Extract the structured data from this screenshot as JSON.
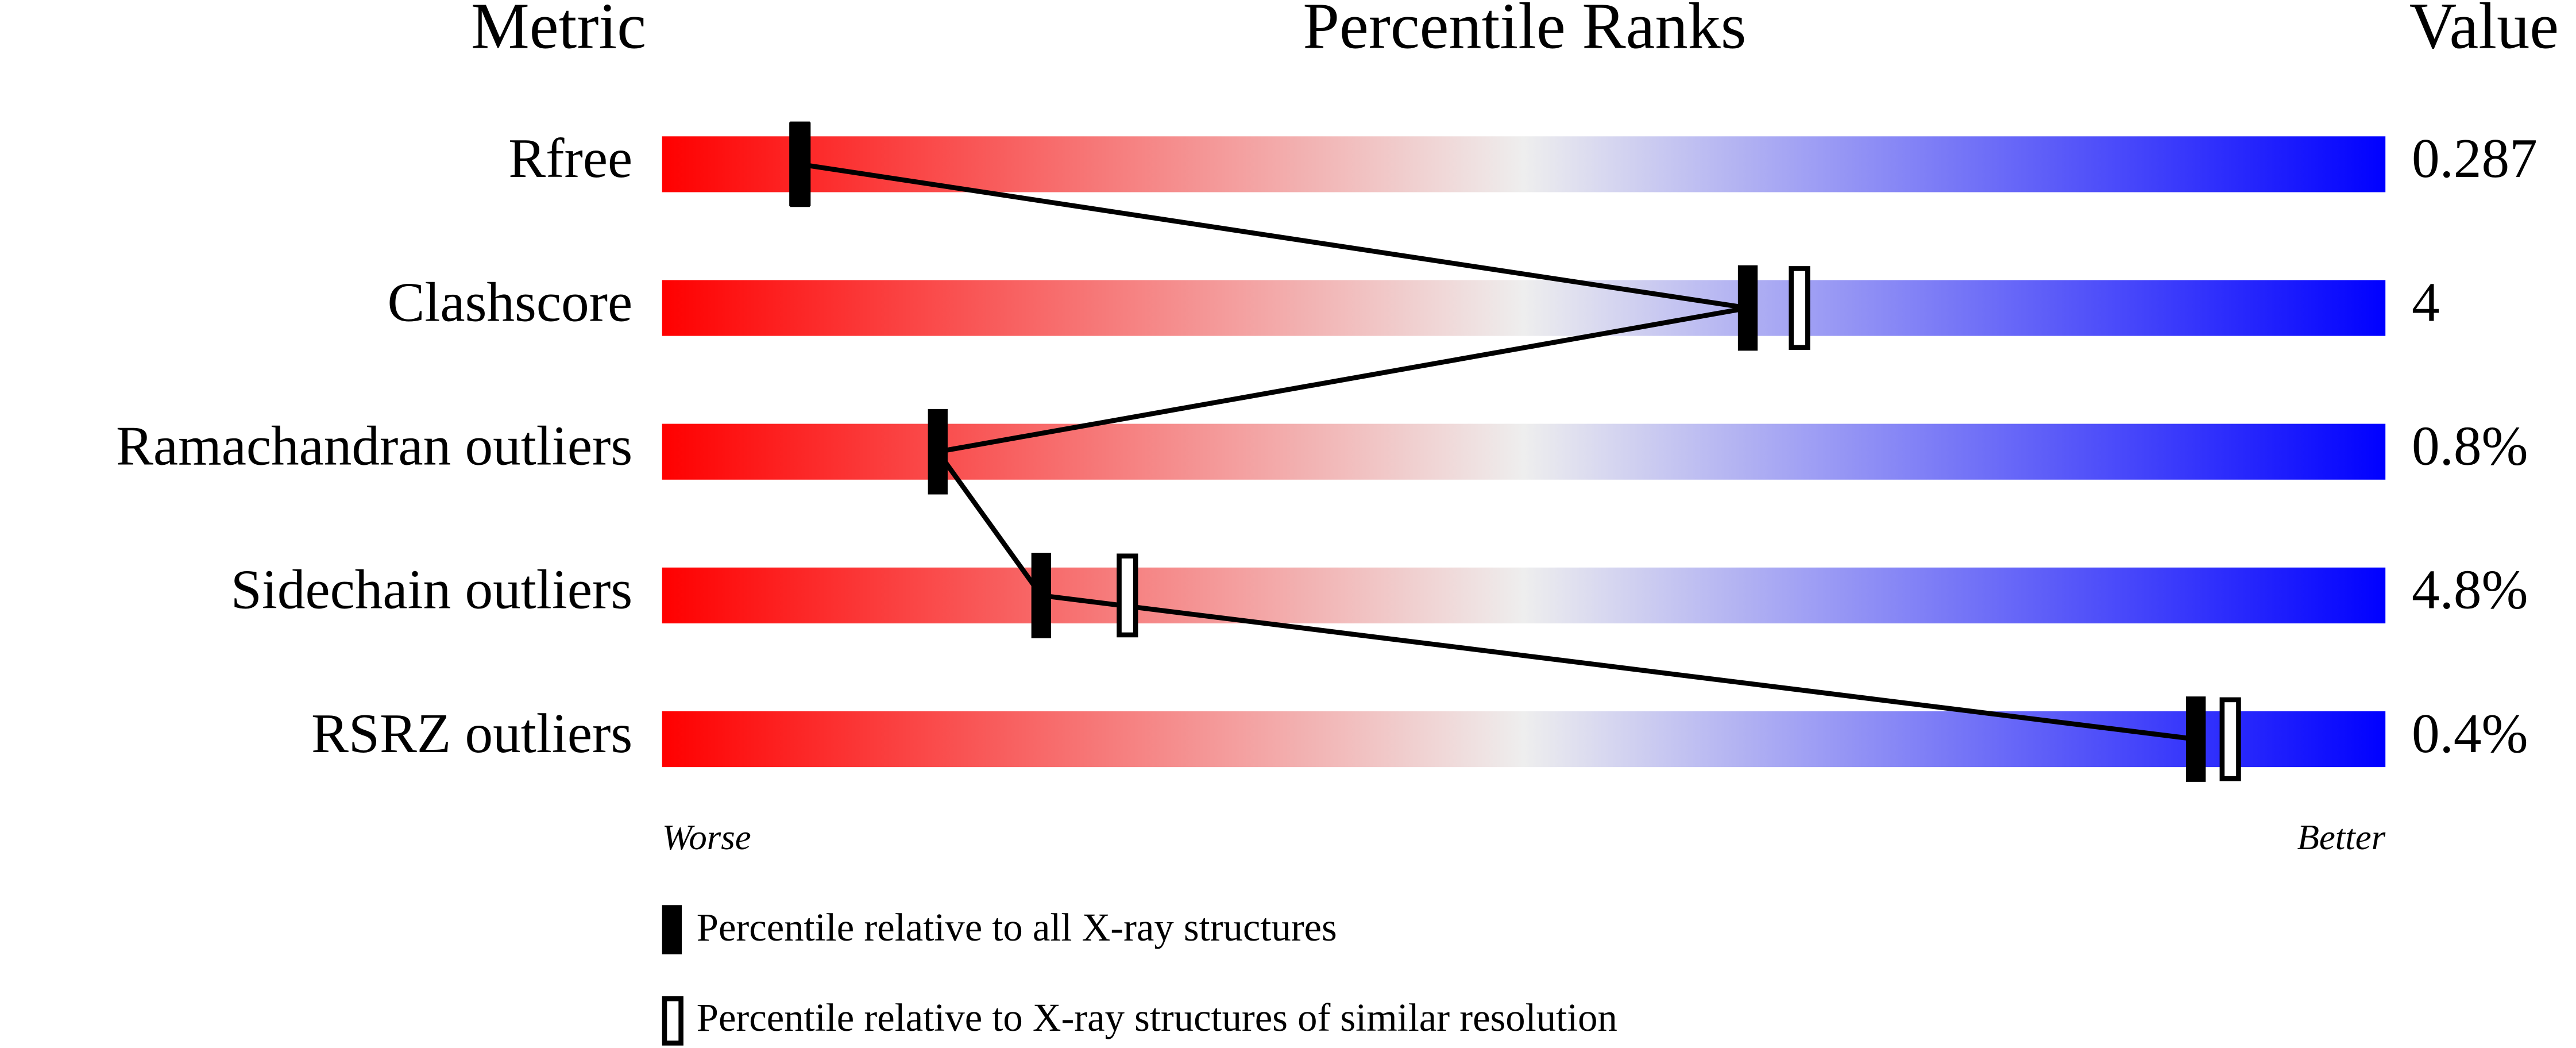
{
  "chart_data": {
    "type": "percentile",
    "headers": [
      "Metric",
      "Percentile Ranks",
      "Value"
    ],
    "categories": [
      "Rfree",
      "Clashscore",
      "Ramachandran outliers",
      "Sidechain outliers",
      "RSRZ outliers"
    ],
    "metric_values": [
      "0.287",
      "4",
      "0.8%",
      "4.8%",
      "0.4%"
    ],
    "series": [
      {
        "name": "Percentile relative to all X-ray structures",
        "color": "#000000",
        "values": [
          8,
          63,
          16,
          22,
          89
        ]
      },
      {
        "name": "Percentile relative to X-ray structures of similar resolution",
        "color": "#000000",
        "values": [
          8,
          66,
          null,
          27,
          91
        ]
      }
    ],
    "xlim": [
      0,
      100
    ],
    "gradient": [
      "#ff0000",
      "#eeeeee",
      "#0000ff"
    ],
    "axis_labels": [
      "Worse",
      "Better"
    ]
  }
}
